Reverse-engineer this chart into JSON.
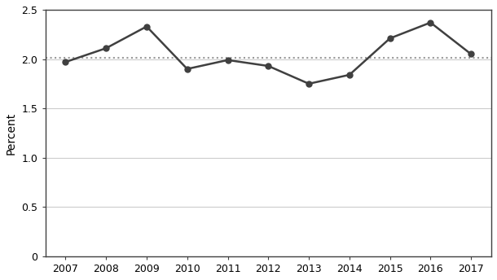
{
  "years": [
    2007,
    2008,
    2009,
    2010,
    2011,
    2012,
    2013,
    2014,
    2015,
    2016,
    2017
  ],
  "values": [
    1.97,
    2.11,
    2.33,
    1.9,
    1.99,
    1.93,
    1.75,
    1.84,
    2.21,
    2.37,
    2.05
  ],
  "dotted_line_value": 2.01,
  "ylabel": "Percent",
  "ylim": [
    0,
    2.5
  ],
  "yticks": [
    0,
    0.5,
    1.0,
    1.5,
    2.0,
    2.5
  ],
  "ytick_labels": [
    "0",
    "0.5",
    "1.0",
    "1.5",
    "2.0",
    "2.5"
  ],
  "line_color": "#404040",
  "dot_color": "#404040",
  "dotted_line_color": "#999999",
  "grid_color": "#cccccc",
  "spine_color": "#404040",
  "background_color": "#ffffff",
  "tick_label_fontsize": 9,
  "ylabel_fontsize": 10
}
